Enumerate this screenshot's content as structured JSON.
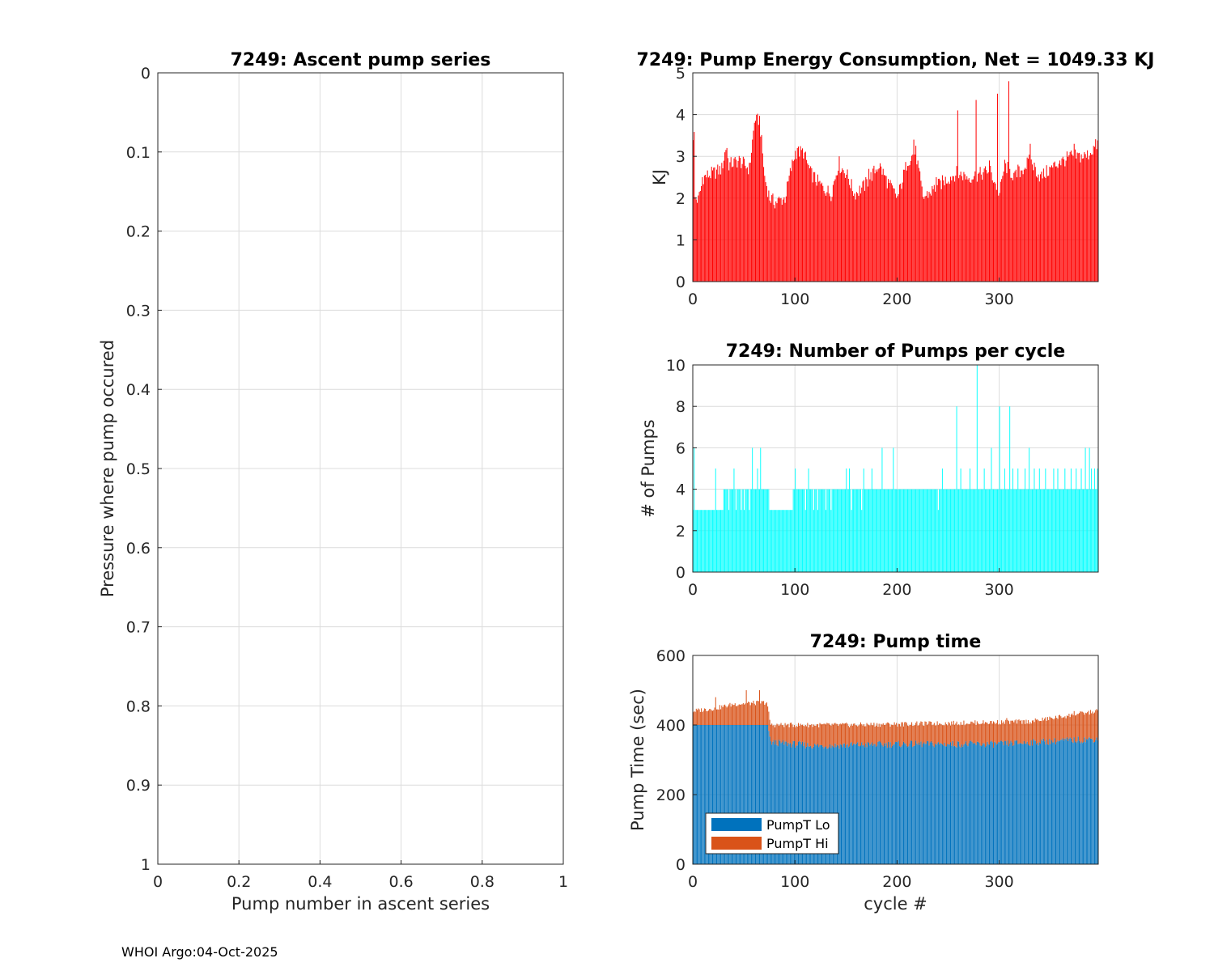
{
  "footer": "WHOI Argo:04-Oct-2025",
  "chart_data": [
    {
      "id": "ascent",
      "type": "scatter",
      "title": "7249: Ascent pump series",
      "xlabel": "Pump number in ascent series",
      "ylabel": "Pressure where pump occured",
      "xlim": [
        0,
        1
      ],
      "ylim": [
        0,
        1
      ],
      "y_reversed": true,
      "xticks": [
        0,
        0.2,
        0.4,
        0.6,
        0.8,
        1
      ],
      "xtick_labels": [
        "0",
        "0.2",
        "0.4",
        "0.6",
        "0.8",
        "1"
      ],
      "yticks": [
        0,
        0.1,
        0.2,
        0.3,
        0.4,
        0.5,
        0.6,
        0.7,
        0.8,
        0.9,
        1
      ],
      "ytick_labels": [
        "0",
        "0.1",
        "0.2",
        "0.3",
        "0.4",
        "0.5",
        "0.6",
        "0.7",
        "0.8",
        "0.9",
        "1"
      ],
      "grid": true,
      "series": []
    },
    {
      "id": "energy",
      "type": "bar",
      "title": "7249: Pump Energy Consumption,  Net = 1049.33 KJ",
      "xlabel": "",
      "ylabel": "KJ",
      "xlim": [
        0,
        397
      ],
      "ylim": [
        0,
        5
      ],
      "xticks": [
        0,
        100,
        200,
        300
      ],
      "xtick_labels": [
        "0",
        "100",
        "200",
        "300"
      ],
      "yticks": [
        0,
        1,
        2,
        3,
        4,
        5
      ],
      "ytick_labels": [
        "0",
        "1",
        "2",
        "3",
        "4",
        "5"
      ],
      "grid": true,
      "color": "#ff0000",
      "n_cycles": 397,
      "key_points": [
        [
          1,
          3.5
        ],
        [
          2,
          2.0
        ],
        [
          5,
          1.95
        ],
        [
          10,
          2.5
        ],
        [
          20,
          2.6
        ],
        [
          28,
          2.7
        ],
        [
          32,
          3.2
        ],
        [
          35,
          2.8
        ],
        [
          45,
          2.9
        ],
        [
          55,
          2.7
        ],
        [
          60,
          3.8
        ],
        [
          65,
          3.9
        ],
        [
          70,
          2.5
        ],
        [
          75,
          2.0
        ],
        [
          80,
          1.9
        ],
        [
          90,
          2.0
        ],
        [
          95,
          2.6
        ],
        [
          100,
          3.1
        ],
        [
          108,
          3.1
        ],
        [
          115,
          2.6
        ],
        [
          125,
          2.3
        ],
        [
          135,
          2.1
        ],
        [
          142,
          2.8
        ],
        [
          150,
          2.6
        ],
        [
          158,
          2.1
        ],
        [
          168,
          2.3
        ],
        [
          182,
          2.8
        ],
        [
          190,
          2.4
        ],
        [
          200,
          2.0
        ],
        [
          210,
          2.9
        ],
        [
          218,
          3.1
        ],
        [
          225,
          2.0
        ],
        [
          235,
          2.2
        ],
        [
          245,
          2.4
        ],
        [
          258,
          2.6
        ],
        [
          270,
          2.5
        ],
        [
          285,
          2.6
        ],
        [
          290,
          2.7
        ],
        [
          300,
          2.1
        ],
        [
          305,
          2.8
        ],
        [
          315,
          2.5
        ],
        [
          330,
          2.9
        ],
        [
          340,
          2.5
        ],
        [
          355,
          2.8
        ],
        [
          370,
          3.0
        ],
        [
          385,
          3.0
        ],
        [
          396,
          3.3
        ]
      ],
      "spikes": [
        [
          9,
          2.5
        ],
        [
          33,
          3.2
        ],
        [
          61,
          3.85
        ],
        [
          102,
          3.2
        ],
        [
          143,
          3.0
        ],
        [
          172,
          2.7
        ],
        [
          216,
          3.4
        ],
        [
          238,
          2.5
        ],
        [
          259,
          4.1
        ],
        [
          277,
          4.35
        ],
        [
          290,
          2.9
        ],
        [
          298,
          4.5
        ],
        [
          309,
          4.8
        ],
        [
          318,
          2.8
        ],
        [
          330,
          3.3
        ],
        [
          359,
          2.9
        ],
        [
          373,
          3.3
        ]
      ]
    },
    {
      "id": "pumps",
      "type": "bar",
      "title": "7249: Number of Pumps per cycle",
      "xlabel": "",
      "ylabel": "# of Pumps",
      "xlim": [
        0,
        397
      ],
      "ylim": [
        0,
        10
      ],
      "xticks": [
        0,
        100,
        200,
        300
      ],
      "xtick_labels": [
        "0",
        "100",
        "200",
        "300"
      ],
      "yticks": [
        0,
        2,
        4,
        6,
        8,
        10
      ],
      "ytick_labels": [
        "0",
        "2",
        "4",
        "6",
        "8",
        "10"
      ],
      "grid": true,
      "color": "#00ffff",
      "n_cycles": 397,
      "segments": [
        [
          0,
          30,
          3
        ],
        [
          30,
          75,
          4
        ],
        [
          75,
          98,
          3
        ],
        [
          98,
          397,
          4
        ]
      ],
      "scatter_threes": [
        35,
        42,
        47,
        50,
        55,
        110,
        118,
        122,
        130,
        135,
        150,
        155,
        165,
        175,
        240,
        300
      ],
      "overrides": [
        [
          1,
          6
        ],
        [
          22,
          5
        ],
        [
          40,
          5
        ],
        [
          58,
          6
        ],
        [
          63,
          5
        ],
        [
          66,
          6
        ],
        [
          100,
          5
        ],
        [
          113,
          5
        ],
        [
          150,
          5
        ],
        [
          153,
          5
        ],
        [
          167,
          5
        ],
        [
          175,
          5
        ],
        [
          185,
          6
        ],
        [
          196,
          6
        ],
        [
          244,
          5
        ],
        [
          258,
          8
        ],
        [
          262,
          5
        ],
        [
          271,
          5
        ],
        [
          278,
          10
        ],
        [
          285,
          5
        ],
        [
          292,
          6
        ],
        [
          300,
          8
        ],
        [
          305,
          5
        ],
        [
          310,
          8
        ],
        [
          313,
          5
        ],
        [
          318,
          5
        ],
        [
          325,
          5
        ],
        [
          329,
          6
        ],
        [
          334,
          5
        ],
        [
          339,
          5
        ],
        [
          345,
          5
        ],
        [
          353,
          5
        ],
        [
          357,
          5
        ],
        [
          364,
          5
        ],
        [
          370,
          5
        ],
        [
          375,
          5
        ],
        [
          380,
          5
        ],
        [
          384,
          6
        ],
        [
          388,
          6
        ],
        [
          390,
          5
        ],
        [
          393,
          5
        ],
        [
          396,
          5
        ]
      ]
    },
    {
      "id": "pumptime",
      "type": "bar",
      "stacked": true,
      "title": "7249: Pump time",
      "xlabel": "cycle #",
      "ylabel": "Pump Time (sec)",
      "xlim": [
        0,
        397
      ],
      "ylim": [
        0,
        600
      ],
      "xticks": [
        0,
        100,
        200,
        300
      ],
      "xtick_labels": [
        "0",
        "100",
        "200",
        "300"
      ],
      "yticks": [
        0,
        200,
        400,
        600
      ],
      "ytick_labels": [
        "0",
        "200",
        "400",
        "600"
      ],
      "grid": true,
      "n_cycles": 397,
      "legend": {
        "position": "bottom-left",
        "entries": [
          {
            "name": "PumpT Lo",
            "color": "#0072bd"
          },
          {
            "name": "PumpT Hi",
            "color": "#d95319"
          }
        ]
      },
      "lo_points": [
        [
          0,
          400
        ],
        [
          73,
          400
        ],
        [
          76,
          350
        ],
        [
          120,
          340
        ],
        [
          200,
          345
        ],
        [
          300,
          345
        ],
        [
          396,
          360
        ]
      ],
      "total_points": [
        [
          0,
          440
        ],
        [
          25,
          450
        ],
        [
          40,
          460
        ],
        [
          72,
          465
        ],
        [
          76,
          400
        ],
        [
          150,
          400
        ],
        [
          250,
          405
        ],
        [
          330,
          410
        ],
        [
          396,
          440
        ]
      ],
      "spikes": [
        [
          22,
          480
        ],
        [
          52,
          500
        ],
        [
          65,
          500
        ],
        [
          307,
          420
        ],
        [
          373,
          440
        ]
      ]
    }
  ]
}
